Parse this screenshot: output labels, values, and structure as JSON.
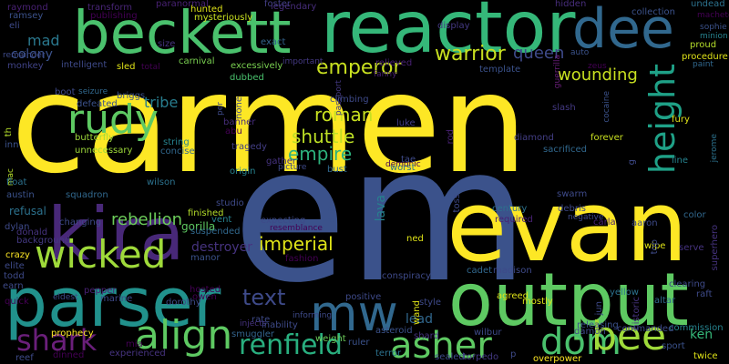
{
  "background": "#000000",
  "palette": [
    "#440154",
    "#46327e",
    "#365c8d",
    "#277f8e",
    "#1fa187",
    "#4ac16d",
    "#a0da39",
    "#fde725"
  ],
  "words": [
    {
      "text": "carmen",
      "color": "#fde725"
    },
    {
      "text": "em",
      "color": "#3b528b"
    },
    {
      "text": "evan",
      "color": "#fde725"
    },
    {
      "text": "reactor",
      "color": "#35b779"
    },
    {
      "text": "beckett",
      "color": "#4ac16d"
    },
    {
      "text": "output",
      "color": "#5ec962"
    },
    {
      "text": "parser",
      "color": "#21918c"
    },
    {
      "text": "kira",
      "color": "#482878"
    },
    {
      "text": "dee",
      "color": "#31688e"
    },
    {
      "text": "mw",
      "color": "#31688e"
    },
    {
      "text": "rudy",
      "color": "#5ec962"
    },
    {
      "text": "wicked",
      "color": "#9fda3a"
    },
    {
      "text": "align",
      "color": "#5ec962"
    },
    {
      "text": "shark",
      "color": "#6a1f7a"
    },
    {
      "text": "asher",
      "color": "#5ec962"
    },
    {
      "text": "dom",
      "color": "#4ac16d"
    },
    {
      "text": "bee",
      "color": "#9fda3a"
    },
    {
      "text": "renfield",
      "color": "#29af7f"
    },
    {
      "text": "text",
      "color": "#3e4a89"
    },
    {
      "text": "emperor",
      "color": "#c8e020"
    },
    {
      "text": "warrior",
      "color": "#c8e020"
    },
    {
      "text": "queen",
      "color": "#3e4a89"
    },
    {
      "text": "height",
      "color": "#1fa187"
    },
    {
      "text": "roman",
      "color": "#c8e020"
    },
    {
      "text": "shuttle",
      "color": "#bddf26"
    },
    {
      "text": "empire",
      "color": "#2db27d"
    },
    {
      "text": "imperial",
      "color": "#dfe318"
    },
    {
      "text": "tribe",
      "color": "#287d8e"
    },
    {
      "text": "rebellion",
      "color": "#6ccd5a"
    },
    {
      "text": "wounding",
      "color": "#c8e020"
    },
    {
      "text": "mad",
      "color": "#2a788e"
    },
    {
      "text": "colony",
      "color": "#3b528b"
    },
    {
      "text": "lava",
      "color": "#26828e"
    },
    {
      "text": "destroyer",
      "color": "#46337f"
    },
    {
      "text": "lead",
      "color": "#31688e"
    },
    {
      "text": "ken",
      "color": "#35b779"
    },
    {
      "text": "refusal",
      "color": "#2c728e"
    },
    {
      "text": "gorilla",
      "color": "#5ec962"
    },
    {
      "text": "monkey",
      "color": "#404387"
    },
    {
      "text": "legendary",
      "color": "#472d7b"
    },
    {
      "text": "hidden",
      "color": "#472d7b"
    },
    {
      "text": "collection",
      "color": "#3b528b"
    },
    {
      "text": "undead",
      "color": "#2c728e"
    },
    {
      "text": "paranormal",
      "color": "#482173"
    },
    {
      "text": "transform",
      "color": "#482576"
    },
    {
      "text": "raymond",
      "color": "#482173"
    },
    {
      "text": "ramsey",
      "color": "#3b528b"
    },
    {
      "text": "remainder",
      "color": "#3e4a89"
    },
    {
      "text": "publishing",
      "color": "#440154"
    },
    {
      "text": "hunted",
      "color": "#dfe318"
    },
    {
      "text": "mysteriously",
      "color": "#c8e020"
    },
    {
      "text": "foster",
      "color": "#433e85"
    },
    {
      "text": "display",
      "color": "#443983"
    },
    {
      "text": "machete",
      "color": "#440154"
    },
    {
      "text": "sophie",
      "color": "#3b528b"
    },
    {
      "text": "minion",
      "color": "#26828e"
    },
    {
      "text": "proud",
      "color": "#b5de2b"
    },
    {
      "text": "procedure",
      "color": "#dfe318"
    },
    {
      "text": "paint",
      "color": "#31688e"
    },
    {
      "text": "zeus",
      "color": "#440154"
    },
    {
      "text": "auto",
      "color": "#3b528b"
    },
    {
      "text": "guerrilla",
      "color": "#6a1f7a"
    },
    {
      "text": "template",
      "color": "#3b528b"
    },
    {
      "text": "fanny",
      "color": "#482173"
    },
    {
      "text": "relieved",
      "color": "#482173"
    },
    {
      "text": "passport",
      "color": "#443983"
    },
    {
      "text": "exact",
      "color": "#33638d"
    },
    {
      "text": "size",
      "color": "#46337f"
    },
    {
      "text": "carnival",
      "color": "#7ad151"
    },
    {
      "text": "excessively",
      "color": "#7ad151"
    },
    {
      "text": "important",
      "color": "#443983"
    },
    {
      "text": "dubbed",
      "color": "#4ac16d"
    },
    {
      "text": "intelligent",
      "color": "#3e4a89"
    },
    {
      "text": "sled",
      "color": "#dfe318"
    },
    {
      "text": "total",
      "color": "#440154"
    },
    {
      "text": "boot",
      "color": "#3e4a89"
    },
    {
      "text": "seizure",
      "color": "#31688e"
    },
    {
      "text": "briggs",
      "color": "#3b528b"
    },
    {
      "text": "defeated",
      "color": "#3b528b"
    },
    {
      "text": "butterfly",
      "color": "#9fda3a"
    },
    {
      "text": "unnecessary",
      "color": "#9fda3a"
    },
    {
      "text": "string",
      "color": "#26828e"
    },
    {
      "text": "concise",
      "color": "#31688e"
    },
    {
      "text": "tragedy",
      "color": "#433e85"
    },
    {
      "text": "origin",
      "color": "#26828e"
    },
    {
      "text": "gather",
      "color": "#46337f"
    },
    {
      "text": "picture",
      "color": "#3e4a89"
    },
    {
      "text": "bust",
      "color": "#31688e"
    },
    {
      "text": "demonic",
      "color": "#440154"
    },
    {
      "text": "worst",
      "color": "#2c728e"
    },
    {
      "text": "tae",
      "color": "#3e4a89"
    },
    {
      "text": "luke",
      "color": "#433e85"
    },
    {
      "text": "slash",
      "color": "#443983"
    },
    {
      "text": "climbing",
      "color": "#3e4a89"
    },
    {
      "text": "banner",
      "color": "#472d7b"
    },
    {
      "text": "abu",
      "color": "#440154"
    },
    {
      "text": "diamond",
      "color": "#433e85"
    },
    {
      "text": "sacrificed",
      "color": "#31688e"
    },
    {
      "text": "forever",
      "color": "#c8e020"
    },
    {
      "text": "fury",
      "color": "#dfe318"
    },
    {
      "text": "line",
      "color": "#26828e"
    },
    {
      "text": "jerome",
      "color": "#2c728e"
    },
    {
      "text": "cocaine",
      "color": "#3b528b"
    },
    {
      "text": "rod",
      "color": "#482173"
    },
    {
      "text": "wilson",
      "color": "#2c728e"
    },
    {
      "text": "squadron",
      "color": "#31688e"
    },
    {
      "text": "donald",
      "color": "#46337f"
    },
    {
      "text": "background",
      "color": "#443983"
    },
    {
      "text": "crazy",
      "color": "#fde725"
    },
    {
      "text": "elite",
      "color": "#3e4a89"
    },
    {
      "text": "todd",
      "color": "#3e4a89"
    },
    {
      "text": "quick",
      "color": "#440154"
    },
    {
      "text": "eldest",
      "color": "#3e4a89"
    },
    {
      "text": "marine",
      "color": "#3e4a89"
    },
    {
      "text": "dorothy",
      "color": "#3e4a89"
    },
    {
      "text": "owen",
      "color": "#440154"
    },
    {
      "text": "rate",
      "color": "#3e4a89"
    },
    {
      "text": "injects",
      "color": "#46337f"
    },
    {
      "text": "inability",
      "color": "#3e4a89"
    },
    {
      "text": "smuggler",
      "color": "#33638d"
    },
    {
      "text": "weight",
      "color": "#6ccd5a"
    },
    {
      "text": "ruler",
      "color": "#3b528b"
    },
    {
      "text": "terror",
      "color": "#2c728e"
    },
    {
      "text": "sealed",
      "color": "#3e4a89"
    },
    {
      "text": "torpedo",
      "color": "#443983"
    },
    {
      "text": "overpower",
      "color": "#fde725"
    },
    {
      "text": "sport",
      "color": "#3b528b"
    },
    {
      "text": "twice",
      "color": "#dfe318"
    },
    {
      "text": "commission",
      "color": "#26828e"
    },
    {
      "text": "experienced",
      "color": "#46337f"
    },
    {
      "text": "dinned",
      "color": "#440154"
    },
    {
      "text": "reef",
      "color": "#3e4a89"
    },
    {
      "text": "mia",
      "color": "#440154"
    },
    {
      "text": "prophecy",
      "color": "#fde725"
    },
    {
      "text": "inn",
      "color": "#3b528b"
    },
    {
      "text": "mac",
      "color": "#b5de2b"
    },
    {
      "text": "float",
      "color": "#2c728e"
    },
    {
      "text": "austin",
      "color": "#3b528b"
    },
    {
      "text": "vent",
      "color": "#26828e"
    },
    {
      "text": "finished",
      "color": "#b5de2b"
    },
    {
      "text": "suspended",
      "color": "#31688e"
    },
    {
      "text": "manor",
      "color": "#3b528b"
    },
    {
      "text": "studio",
      "color": "#3e4a89"
    },
    {
      "text": "expecting",
      "color": "#3e4a89"
    },
    {
      "text": "resemblance",
      "color": "#440154"
    },
    {
      "text": "fashion",
      "color": "#440154"
    },
    {
      "text": "informing",
      "color": "#3e4a89"
    },
    {
      "text": "asteroid",
      "color": "#3b528b"
    },
    {
      "text": "positive",
      "color": "#3e4a89"
    },
    {
      "text": "style",
      "color": "#3e4a89"
    },
    {
      "text": "wand",
      "color": "#dfe318"
    },
    {
      "text": "conspiracy",
      "color": "#3e4a89"
    },
    {
      "text": "ned",
      "color": "#dfe318"
    },
    {
      "text": "drift",
      "color": "#3b528b"
    },
    {
      "text": "cadet",
      "color": "#31688e"
    },
    {
      "text": "madison",
      "color": "#3e4a89"
    },
    {
      "text": "century",
      "color": "#2c728e"
    },
    {
      "text": "required",
      "color": "#482173"
    },
    {
      "text": "debris",
      "color": "#3e4a89"
    },
    {
      "text": "negative",
      "color": "#3e4a89"
    },
    {
      "text": "swarm",
      "color": "#3e4a89"
    },
    {
      "text": "agreed",
      "color": "#dfe318"
    },
    {
      "text": "mostly",
      "color": "#dfe318"
    },
    {
      "text": "yellow",
      "color": "#2c728e"
    },
    {
      "text": "altar",
      "color": "#31688e"
    },
    {
      "text": "releasing",
      "color": "#3b528b"
    },
    {
      "text": "carla",
      "color": "#482173"
    },
    {
      "text": "aaron",
      "color": "#3e4a89"
    },
    {
      "text": "wipe",
      "color": "#dfe318"
    },
    {
      "text": "top",
      "color": "#3e4a89"
    },
    {
      "text": "clearing",
      "color": "#3e4a89"
    },
    {
      "text": "raft",
      "color": "#3e4a89"
    },
    {
      "text": "historic",
      "color": "#46337f"
    },
    {
      "text": "jun",
      "color": "#3e4a89"
    },
    {
      "text": "commanded",
      "color": "#3e4a89"
    },
    {
      "text": "damon",
      "color": "#3e4a89"
    },
    {
      "text": "wilbur",
      "color": "#3e4a89"
    },
    {
      "text": "color",
      "color": "#31688e"
    },
    {
      "text": "superhero",
      "color": "#46337f"
    },
    {
      "text": "serve",
      "color": "#46337f"
    },
    {
      "text": "th",
      "color": "#b5de2b"
    },
    {
      "text": "eli",
      "color": "#3e4a89"
    },
    {
      "text": "earn",
      "color": "#3e4a89"
    },
    {
      "text": "pepper",
      "color": "#482173"
    },
    {
      "text": "hosted",
      "color": "#440154"
    },
    {
      "text": "changing",
      "color": "#3e4a89"
    },
    {
      "text": "dylan",
      "color": "#3e4a89"
    },
    {
      "text": "toss",
      "color": "#3e4a89"
    },
    {
      "text": "per",
      "color": "#3e4a89"
    },
    {
      "text": "none",
      "color": "#3e4a89"
    },
    {
      "text": "shard",
      "color": "#46337f"
    },
    {
      "text": "p",
      "color": "#3e4a89"
    },
    {
      "text": "g",
      "color": "#3e4a89"
    }
  ]
}
